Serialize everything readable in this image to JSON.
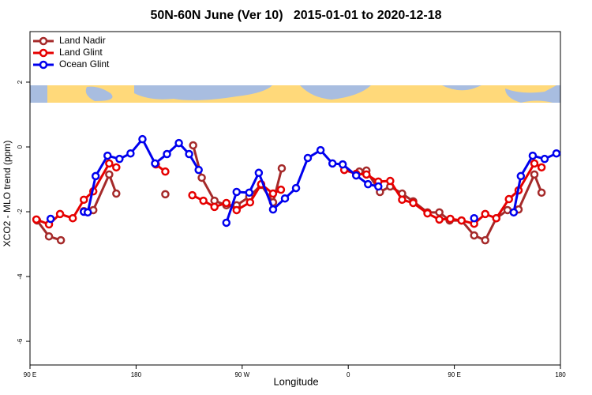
{
  "chart_data": {
    "type": "line",
    "title": "50N-60N June (Ver 10)   2015-01-01 to 2020-12-18",
    "x_label": "Longitude",
    "y_label": "XCO2 - MLO trend (ppm)",
    "xlim": [
      90,
      540
    ],
    "xticks": [
      {
        "value": 90,
        "label": "90 E"
      },
      180,
      {
        "value": 270,
        "label": "90 W"
      },
      {
        "value": 360,
        "label": "0"
      },
      {
        "value": 450,
        "label": "90 E"
      },
      {
        "value": 540,
        "label": "180"
      }
    ],
    "ylim": [
      -6.73,
      3.56
    ],
    "yticks": [
      2,
      0,
      -2,
      -4,
      -6
    ],
    "legend": "top-left",
    "series": [
      {
        "name": "Land Nadir",
        "color": "#a52a2a",
        "x": [
          96.0,
          106.1,
          116.2,
          null,
          135.7,
          143.7,
          157.2,
          163.2,
          null,
          204.8,
          null,
          228.4,
          235.7,
          246.5,
          256.6,
          265.3,
          276.0,
          286.1,
          296.2,
          303.6,
          null,
          369.4,
          375.4,
          386.9,
          395.6,
          405.7,
          415.1,
          427.2,
          437.3,
          446.0,
          456.1,
          466.8,
          476.2,
          485.6,
          495.1,
          504.5,
          517.9,
          524.0
        ],
        "values": [
          -2.27,
          -2.76,
          -2.88,
          null,
          -1.98,
          -1.95,
          -0.85,
          -1.44,
          null,
          -1.46,
          null,
          0.05,
          -0.95,
          -1.66,
          -1.8,
          -1.8,
          -1.54,
          -1.17,
          -1.71,
          -0.66,
          null,
          -0.76,
          -0.73,
          -1.39,
          -1.22,
          -1.44,
          -1.68,
          -2.02,
          -2.02,
          -2.27,
          -2.27,
          -2.73,
          -2.88,
          -2.2,
          -1.95,
          -1.93,
          -0.85,
          -1.41
        ]
      },
      {
        "name": "Land Glint",
        "color": "#e60000",
        "x": [
          95.4,
          106.1,
          115.5,
          126.3,
          135.7,
          143.7,
          157.2,
          163.2,
          null,
          196.8,
          204.8,
          null,
          227.7,
          237.1,
          246.5,
          256.6,
          265.3,
          276.7,
          286.1,
          296.2,
          302.9,
          null,
          356.6,
          366.7,
          375.4,
          385.5,
          395.6,
          405.7,
          415.1,
          427.2,
          437.3,
          446.6,
          456.1,
          466.8,
          476.2,
          485.6,
          496.3,
          504.5,
          517.9,
          524.0
        ],
        "values": [
          -2.24,
          -2.39,
          -2.07,
          -2.2,
          -1.63,
          -1.37,
          -0.51,
          -0.63,
          null,
          -0.54,
          -0.76,
          null,
          -1.49,
          -1.66,
          -1.85,
          -1.73,
          -1.95,
          -1.71,
          -1.15,
          -1.44,
          -1.32,
          null,
          -0.71,
          -0.83,
          -0.85,
          -1.07,
          -1.05,
          -1.63,
          -1.73,
          -2.05,
          -2.24,
          -2.22,
          -2.27,
          -2.37,
          -2.07,
          -2.2,
          -1.61,
          -1.34,
          -0.51,
          -0.63
        ]
      },
      {
        "name": "Ocean Glint",
        "color": "#0000ee",
        "x": [
          107.5,
          null,
          135.7,
          139.0,
          145.7,
          155.8,
          165.9,
          175.3,
          185.4,
          196.1,
          206.2,
          216.3,
          225.0,
          233.1,
          null,
          256.6,
          265.3,
          276.0,
          284.1,
          296.2,
          306.3,
          315.7,
          325.7,
          336.5,
          346.6,
          355.3,
          366.7,
          376.8,
          385.5,
          null,
          466.8,
          null,
          500.4,
          506.4,
          516.5,
          526.6,
          536.6
        ],
        "values": [
          -2.22,
          null,
          -2.0,
          -2.02,
          -0.9,
          -0.27,
          -0.37,
          -0.2,
          0.24,
          -0.51,
          -0.22,
          0.12,
          -0.22,
          -0.71,
          null,
          -2.34,
          -1.39,
          -1.41,
          -0.8,
          -1.93,
          -1.59,
          -1.27,
          -0.34,
          -0.1,
          -0.51,
          -0.54,
          -0.88,
          -1.15,
          -1.22,
          null,
          -2.2,
          null,
          -2.02,
          -0.9,
          -0.27,
          -0.37,
          -0.2
        ]
      }
    ]
  }
}
